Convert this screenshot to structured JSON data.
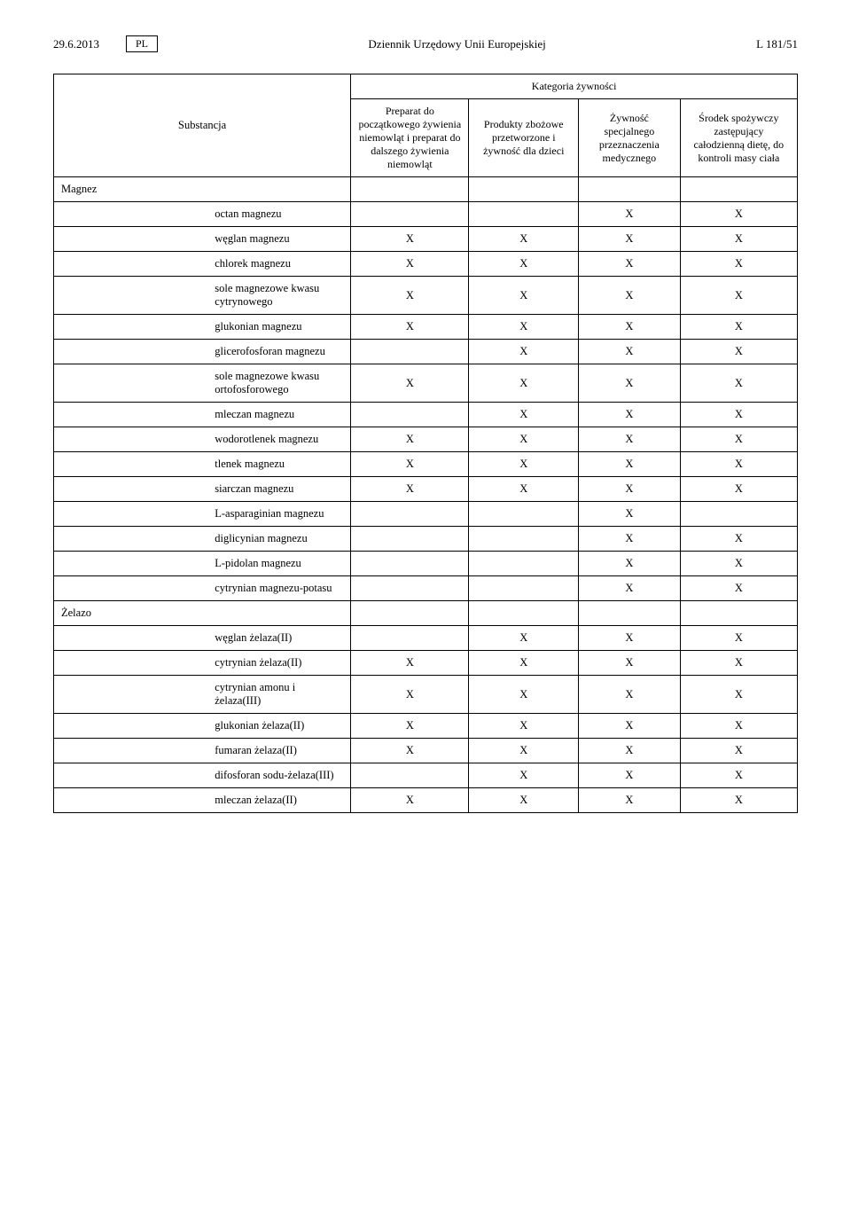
{
  "header": {
    "date": "29.6.2013",
    "lang": "PL",
    "title": "Dziennik Urzędowy Unii Europejskiej",
    "page_ref": "L 181/51"
  },
  "table": {
    "category_header": "Kategoria żywności",
    "col_substance": "Substancja",
    "col1": "Preparat do początkowego żywienia niemowląt i preparat do dalszego żywienia niemowląt",
    "col2": "Produkty zbożowe przetworzone i żywność dla dzieci",
    "col3": "Żywność specjalnego przeznaczenia medycznego",
    "col4": "Środek spożywczy zastępujący całodzienną dietę, do kontroli masy ciała",
    "sections": [
      {
        "name": "Magnez",
        "rows": [
          {
            "label": "octan magnezu",
            "c1": "",
            "c2": "",
            "c3": "X",
            "c4": "X"
          },
          {
            "label": "węglan magnezu",
            "c1": "X",
            "c2": "X",
            "c3": "X",
            "c4": "X"
          },
          {
            "label": "chlorek magnezu",
            "c1": "X",
            "c2": "X",
            "c3": "X",
            "c4": "X"
          },
          {
            "label": "sole magnezowe kwasu cytrynowego",
            "c1": "X",
            "c2": "X",
            "c3": "X",
            "c4": "X"
          },
          {
            "label": "glukonian magnezu",
            "c1": "X",
            "c2": "X",
            "c3": "X",
            "c4": "X"
          },
          {
            "label": "glicerofosforan magnezu",
            "c1": "",
            "c2": "X",
            "c3": "X",
            "c4": "X"
          },
          {
            "label": "sole magnezowe kwasu ortofosforowego",
            "c1": "X",
            "c2": "X",
            "c3": "X",
            "c4": "X"
          },
          {
            "label": "mleczan magnezu",
            "c1": "",
            "c2": "X",
            "c3": "X",
            "c4": "X"
          },
          {
            "label": "wodorotlenek magnezu",
            "c1": "X",
            "c2": "X",
            "c3": "X",
            "c4": "X"
          },
          {
            "label": "tlenek magnezu",
            "c1": "X",
            "c2": "X",
            "c3": "X",
            "c4": "X"
          },
          {
            "label": "siarczan magnezu",
            "c1": "X",
            "c2": "X",
            "c3": "X",
            "c4": "X"
          },
          {
            "label": "L-asparaginian magnezu",
            "c1": "",
            "c2": "",
            "c3": "X",
            "c4": ""
          },
          {
            "label": "diglicynian magnezu",
            "c1": "",
            "c2": "",
            "c3": "X",
            "c4": "X"
          },
          {
            "label": "L-pidolan magnezu",
            "c1": "",
            "c2": "",
            "c3": "X",
            "c4": "X"
          },
          {
            "label": "cytrynian magnezu-potasu",
            "c1": "",
            "c2": "",
            "c3": "X",
            "c4": "X"
          }
        ]
      },
      {
        "name": "Żelazo",
        "rows": [
          {
            "label": "węglan żelaza(II)",
            "c1": "",
            "c2": "X",
            "c3": "X",
            "c4": "X"
          },
          {
            "label": "cytrynian żelaza(II)",
            "c1": "X",
            "c2": "X",
            "c3": "X",
            "c4": "X"
          },
          {
            "label": "cytrynian amonu i żelaza(III)",
            "c1": "X",
            "c2": "X",
            "c3": "X",
            "c4": "X"
          },
          {
            "label": "glukonian żelaza(II)",
            "c1": "X",
            "c2": "X",
            "c3": "X",
            "c4": "X"
          },
          {
            "label": "fumaran żelaza(II)",
            "c1": "X",
            "c2": "X",
            "c3": "X",
            "c4": "X"
          },
          {
            "label": "difosforan sodu-żelaza(III)",
            "c1": "",
            "c2": "X",
            "c3": "X",
            "c4": "X"
          },
          {
            "label": "mleczan żelaza(II)",
            "c1": "X",
            "c2": "X",
            "c3": "X",
            "c4": "X"
          }
        ]
      }
    ]
  }
}
